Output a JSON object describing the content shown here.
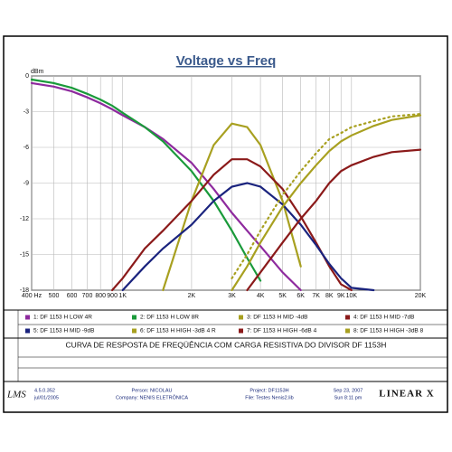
{
  "chart_data": {
    "type": "line",
    "title": "Voltage vs Freq",
    "ylabel": "dBm",
    "log_x": true,
    "grid": true,
    "x": [
      400,
      500,
      600,
      700,
      800,
      900,
      1000,
      1250,
      1500,
      2000,
      2500,
      3000,
      3500,
      4000,
      5000,
      6000,
      7000,
      8000,
      9000,
      10000,
      12500,
      15000,
      20000
    ],
    "xlim": [
      400,
      20000
    ],
    "ylim": [
      -18,
      0
    ],
    "xticks": [
      {
        "value": 400,
        "label": "400 Hz"
      },
      500,
      600,
      700,
      800,
      900,
      {
        "value": 1000,
        "label": "1K"
      },
      {
        "value": 2000,
        "label": "2K"
      },
      {
        "value": 3000,
        "label": "3K"
      },
      {
        "value": 4000,
        "label": "4K"
      },
      {
        "value": 5000,
        "label": "5K"
      },
      {
        "value": 6000,
        "label": "6K"
      },
      {
        "value": 7000,
        "label": "7K"
      },
      {
        "value": 8000,
        "label": "8K"
      },
      {
        "value": 9000,
        "label": "9K"
      },
      {
        "value": 10000,
        "label": "10K"
      },
      {
        "value": 20000,
        "label": "20K"
      }
    ],
    "yticks": [
      0,
      -3,
      -6,
      -9,
      -12,
      -15,
      -18
    ],
    "series": [
      {
        "name": "1: DF 1153 H LOW 4R",
        "color": "#8e2a9e",
        "values": [
          -0.6,
          -0.9,
          -1.3,
          -1.8,
          -2.3,
          -2.8,
          -3.3,
          -4.3,
          -5.3,
          -7.3,
          -9.5,
          -11.5,
          -13,
          -14.3,
          -16.5,
          -18,
          null,
          null,
          null,
          null,
          null,
          null,
          null
        ]
      },
      {
        "name": "2: DF 1153 H LOW 8R",
        "color": "#1a9a3a",
        "values": [
          -0.3,
          -0.6,
          -1,
          -1.5,
          -2,
          -2.5,
          -3.1,
          -4.3,
          -5.5,
          -8,
          -10.5,
          -13,
          -15.3,
          -17.2,
          null,
          null,
          null,
          null,
          null,
          null,
          null,
          null,
          null
        ]
      },
      {
        "name": "3: DF 1153 H MID -4dB",
        "color": "#a8a020",
        "values": [
          null,
          null,
          null,
          null,
          null,
          null,
          null,
          null,
          -18,
          -10.5,
          -5.8,
          -4,
          -4.3,
          -5.8,
          -10.5,
          -16,
          null,
          null,
          null,
          null,
          null,
          null,
          null
        ]
      },
      {
        "name": "4: DF 1153 H MID -7dB",
        "color": "#8b1a1a",
        "values": [
          null,
          null,
          null,
          null,
          null,
          -18,
          -17,
          -14.5,
          -13,
          -10.5,
          -8.3,
          -7,
          -7,
          -7.6,
          -9.5,
          -11.8,
          -14,
          -16,
          -17.5,
          -18,
          null,
          null,
          null
        ]
      },
      {
        "name": "5:  DF 1153 H MID -9dB",
        "color": "#1a237e",
        "values": [
          null,
          null,
          null,
          null,
          null,
          null,
          -18,
          -16,
          -14.5,
          -12.5,
          -10.5,
          -9.3,
          -9,
          -9.3,
          -10.8,
          -12.5,
          -14.2,
          -15.8,
          -17,
          -17.8,
          -18,
          null,
          null
        ]
      },
      {
        "name": "6: DF 1153 H HIGH -3dB 4 R",
        "color": "#a8a020",
        "values": [
          null,
          null,
          null,
          null,
          null,
          null,
          null,
          null,
          null,
          null,
          null,
          -18,
          -16,
          -14,
          -11,
          -9,
          -7.5,
          -6.3,
          -5.5,
          -5,
          -4.2,
          -3.7,
          -3.3
        ]
      },
      {
        "name": "7: DF 1153 H HIGH -6dB 4",
        "color": "#8b1a1a",
        "values": [
          null,
          null,
          null,
          null,
          null,
          null,
          null,
          null,
          null,
          null,
          null,
          null,
          -18,
          -16.5,
          -14,
          -12,
          -10.5,
          -9,
          -8,
          -7.5,
          -6.8,
          -6.4,
          -6.2
        ]
      },
      {
        "name": "8: DF 1153 H HIGH -3dB 8",
        "color": "#a8a020",
        "dotted": true,
        "values": [
          null,
          null,
          null,
          null,
          null,
          null,
          null,
          null,
          null,
          null,
          null,
          -17,
          -15,
          -13,
          -10,
          -8,
          -6.5,
          -5.3,
          -4.8,
          -4.3,
          -3.8,
          -3.4,
          -3.2
        ]
      }
    ]
  },
  "notes": "CURVA DE RESPOSTA DE FREQÜÊNCIA COM CARGA RESISTIVA DO DIVISOR DF 1153H",
  "footer": {
    "logo": "LMS",
    "version": "4.5.0.352",
    "date": "jul/01/2005",
    "person": "Person: NICOLAU",
    "company": "Company: NENIS ELETRÔNICA",
    "project": "Project: DF1153H",
    "file": "File: Testes Nenis2.lib",
    "print_date": "Sep 23, 2007",
    "print_time": "Sun  8:11 pm",
    "brand": "LINEAR X"
  }
}
